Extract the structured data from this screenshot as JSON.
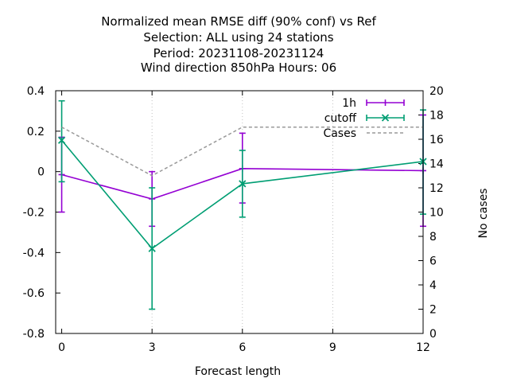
{
  "chart_data": {
    "type": "line",
    "title_lines": [
      "Normalized mean RMSE diff (90% conf) vs Ref",
      "Selection: ALL using    24 stations",
      "Period: 20231108-20231124",
      "Wind direction 850hPa   Hours:  06"
    ],
    "xlabel": "Forecast length",
    "ylabel": "",
    "y2label": "No cases",
    "xlim": [
      -0.2,
      12
    ],
    "ylim": [
      -0.8,
      0.4
    ],
    "y2lim": [
      0,
      20
    ],
    "xticks": [
      0,
      3,
      6,
      9,
      12
    ],
    "yticks": [
      -0.8,
      -0.6,
      -0.4,
      -0.2,
      0,
      0.2,
      0.4
    ],
    "ytick_labels": [
      "-0.8",
      "-0.6",
      "-0.4",
      "-0.2",
      "0",
      "0.2",
      "0.4"
    ],
    "y2ticks": [
      0,
      2,
      4,
      6,
      8,
      10,
      12,
      14,
      16,
      18,
      20
    ],
    "legend_position": "top-right",
    "series": [
      {
        "name": "1h",
        "color": "#9400d3",
        "style": "errorbars",
        "x": [
          0,
          3,
          6,
          12
        ],
        "y": [
          -0.015,
          -0.135,
          0.015,
          0.005
        ],
        "ylow": [
          -0.2,
          -0.27,
          -0.155,
          -0.27
        ],
        "yhigh": [
          0.17,
          0.0,
          0.19,
          0.28
        ]
      },
      {
        "name": "cutoff",
        "color": "#009e73",
        "style": "errorbars",
        "marker": "x",
        "x": [
          0,
          3,
          6,
          12
        ],
        "y": [
          0.155,
          -0.38,
          -0.06,
          0.05
        ],
        "ylow": [
          -0.05,
          -0.68,
          -0.225,
          -0.21
        ],
        "yhigh": [
          0.35,
          -0.08,
          0.105,
          0.305
        ]
      },
      {
        "name": "Cases",
        "color": "#999999",
        "style": "dashed",
        "axis": "y2",
        "x": [
          0,
          3,
          6,
          12
        ],
        "y": [
          17,
          13,
          17,
          17
        ]
      }
    ]
  }
}
